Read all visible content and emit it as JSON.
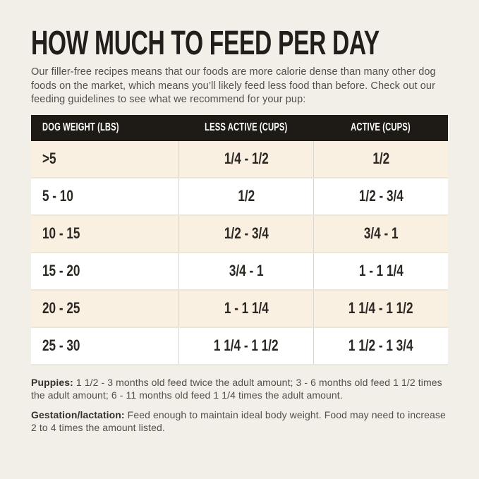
{
  "page": {
    "title": "HOW MUCH TO FEED PER DAY",
    "intro": "Our filler-free recipes means that our foods are more calorie dense than many other dog foods on the market, which means you’ll likely feed less food than before. Check out our feeding guidelines to see what we recommend for your pup:"
  },
  "table": {
    "columns": [
      "DOG WEIGHT (LBS)",
      "LESS ACTIVE (CUPS)",
      "ACTIVE (CUPS)"
    ],
    "rows": [
      {
        "weight": ">5",
        "less_active": "1/4 - 1/2",
        "active": "1/2"
      },
      {
        "weight": "5 - 10",
        "less_active": "1/2",
        "active": "1/2 - 3/4"
      },
      {
        "weight": "10 - 15",
        "less_active": "1/2 - 3/4",
        "active": "3/4 - 1"
      },
      {
        "weight": "15 - 20",
        "less_active": "3/4 - 1",
        "active": "1 - 1 1/4"
      },
      {
        "weight": "20 - 25",
        "less_active": "1 - 1 1/4",
        "active": "1 1/4 - 1 1/2"
      },
      {
        "weight": "25 - 30",
        "less_active": "1 1/4 - 1 1/2",
        "active": "1 1/2 - 1 3/4"
      }
    ]
  },
  "notes": [
    {
      "label": "Puppies:",
      "text": " 1 1/2 - 3 months old feed twice the adult amount; 3 - 6 months old feed 1 1/2 times the adult amount; 6 - 11 months old feed 1 1/4 times the adult amount."
    },
    {
      "label": "Gestation/lactation:",
      "text": " Feed enough to maintain ideal body weight. Food may need to increase 2 to 4 times the amount listed."
    }
  ],
  "colors": {
    "page-bg": "#F2EFE9",
    "row-cream": "#FAF0E2",
    "row-white": "#FFFFFF",
    "header-bg": "#1E1A16",
    "header-text": "#FFFFFF",
    "title-text": "#221E1B",
    "cell-text": "#2B2723",
    "body-text": "#524E49",
    "note-label-text": "#35312D",
    "divider-v": "#D8D5CE",
    "divider-h": "#E9E6DD"
  }
}
